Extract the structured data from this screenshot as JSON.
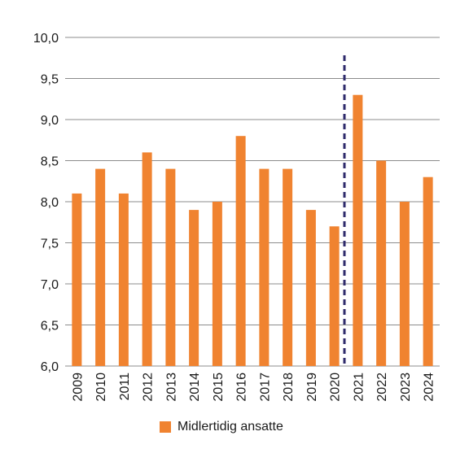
{
  "chart_data": {
    "type": "bar",
    "categories": [
      "2009",
      "2010",
      "2011",
      "2012",
      "2013",
      "2014",
      "2015",
      "2016",
      "2017",
      "2018",
      "2019",
      "2020",
      "2021",
      "2022",
      "2023",
      "2024"
    ],
    "series": [
      {
        "name": "Midlertidig ansatte",
        "values": [
          8.1,
          8.4,
          8.1,
          8.6,
          8.4,
          7.9,
          8.0,
          8.8,
          8.4,
          8.4,
          7.9,
          7.7,
          9.3,
          8.5,
          8.0,
          8.3
        ]
      }
    ],
    "ylim": [
      6.0,
      10.0
    ],
    "yticks": [
      "6,0",
      "6,5",
      "7,0",
      "7,5",
      "8,0",
      "8,5",
      "9,0",
      "9,5",
      "10,0"
    ],
    "grid": true,
    "legend_position": "bottom",
    "break_marker": "between 2020 and 2021",
    "colors": {
      "bar": "#f08330",
      "break_line": "#2e2a6b",
      "grid": "#8c8c8c"
    }
  }
}
